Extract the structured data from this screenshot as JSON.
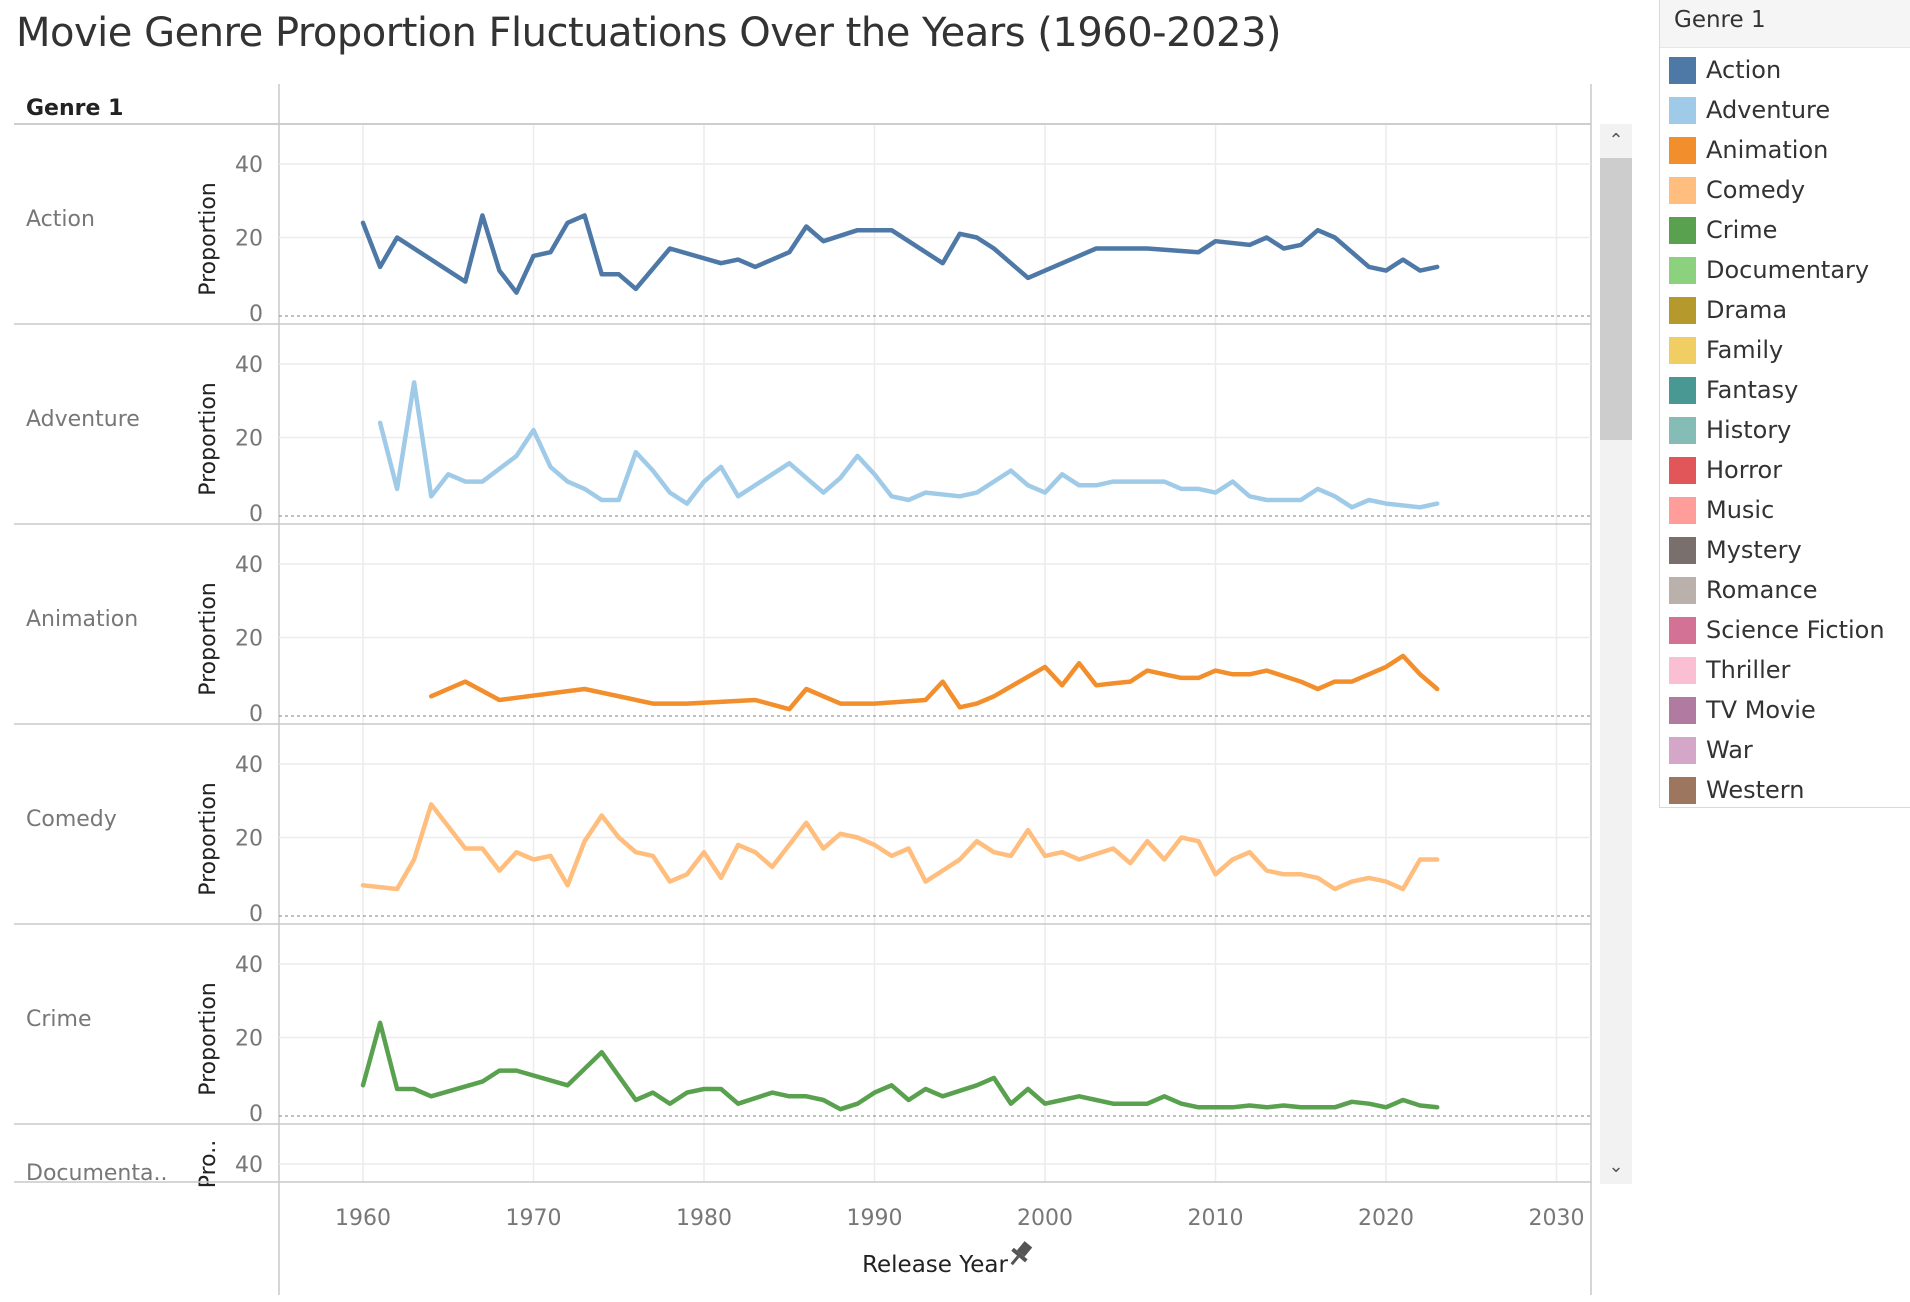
{
  "title": "Movie Genre Proportion Fluctuations Over the Years (1960-2023)",
  "row_header": "Genre 1",
  "x_axis_title": "Release Year",
  "y_axis_title": "Proportion",
  "y_axis_title_truncated": "Pro..",
  "pin_icon": "pin-icon",
  "legend": {
    "title": "Genre 1",
    "items": [
      {
        "label": "Action",
        "color": "#4e79a7"
      },
      {
        "label": "Adventure",
        "color": "#a0cbe8"
      },
      {
        "label": "Animation",
        "color": "#f28e2b"
      },
      {
        "label": "Comedy",
        "color": "#ffbe7d"
      },
      {
        "label": "Crime",
        "color": "#59a14f"
      },
      {
        "label": "Documentary",
        "color": "#8cd17d"
      },
      {
        "label": "Drama",
        "color": "#b6992d"
      },
      {
        "label": "Family",
        "color": "#f1ce63"
      },
      {
        "label": "Fantasy",
        "color": "#499894"
      },
      {
        "label": "History",
        "color": "#86bcb6"
      },
      {
        "label": "Horror",
        "color": "#e15759"
      },
      {
        "label": "Music",
        "color": "#ff9d9a"
      },
      {
        "label": "Mystery",
        "color": "#79706e"
      },
      {
        "label": "Romance",
        "color": "#bab0ac"
      },
      {
        "label": "Science Fiction",
        "color": "#d37295"
      },
      {
        "label": "Thriller",
        "color": "#fabfd2"
      },
      {
        "label": "TV Movie",
        "color": "#b07aa1"
      },
      {
        "label": "War",
        "color": "#d4a6c8"
      },
      {
        "label": "Western",
        "color": "#9d7660"
      }
    ]
  },
  "chart_data": {
    "type": "line",
    "x_ticks": [
      1960,
      1970,
      1980,
      1990,
      2000,
      2010,
      2020,
      2030
    ],
    "xlim": [
      1960,
      2030
    ],
    "y_ticks": [
      0,
      20,
      40
    ],
    "ylim": [
      0,
      45
    ],
    "panels": [
      {
        "name": "Action",
        "color": "#4e79a7",
        "x": [
          1960,
          1961,
          1962,
          1966,
          1967,
          1968,
          1969,
          1970,
          1971,
          1972,
          1973,
          1974,
          1975,
          1976,
          1978,
          1981,
          1982,
          1983,
          1985,
          1986,
          1987,
          1989,
          1991,
          1994,
          1995,
          1996,
          1997,
          1999,
          2003,
          2006,
          2009,
          2010,
          2012,
          2013,
          2014,
          2015,
          2016,
          2017,
          2019,
          2020,
          2021,
          2022,
          2023
        ],
        "y": [
          24,
          12,
          20,
          8,
          26,
          11,
          5,
          15,
          16,
          24,
          26,
          10,
          10,
          6,
          17,
          13,
          14,
          12,
          16,
          23,
          19,
          22,
          22,
          13,
          21,
          20,
          17,
          9,
          17,
          17,
          16,
          19,
          18,
          20,
          17,
          18,
          22,
          20,
          12,
          11,
          14,
          11,
          12
        ]
      },
      {
        "name": "Adventure",
        "color": "#a0cbe8",
        "x": [
          1961,
          1962,
          1963,
          1964,
          1965,
          1966,
          1967,
          1969,
          1970,
          1971,
          1972,
          1973,
          1974,
          1975,
          1976,
          1977,
          1978,
          1979,
          1980,
          1981,
          1982,
          1984,
          1985,
          1986,
          1987,
          1988,
          1989,
          1990,
          1991,
          1992,
          1993,
          1995,
          1996,
          1998,
          1999,
          2000,
          2001,
          2002,
          2003,
          2004,
          2006,
          2007,
          2008,
          2009,
          2010,
          2011,
          2012,
          2013,
          2015,
          2016,
          2017,
          2018,
          2019,
          2020,
          2022,
          2023
        ],
        "y": [
          24,
          6,
          35,
          4,
          10,
          8,
          8,
          15,
          22,
          12,
          8,
          6,
          3,
          3,
          16,
          11,
          5,
          2,
          8,
          12,
          4,
          10,
          13,
          9,
          5,
          9,
          15,
          10,
          4,
          3,
          5,
          4,
          5,
          11,
          7,
          5,
          10,
          7,
          7,
          8,
          8,
          8,
          6,
          6,
          5,
          8,
          4,
          3,
          3,
          6,
          4,
          1,
          3,
          2,
          1,
          2
        ]
      },
      {
        "name": "Animation",
        "color": "#f28e2b",
        "x": [
          1964,
          1966,
          1968,
          1973,
          1977,
          1979,
          1983,
          1985,
          1986,
          1988,
          1990,
          1993,
          1994,
          1995,
          1996,
          1997,
          2000,
          2001,
          2002,
          2003,
          2004,
          2005,
          2006,
          2007,
          2008,
          2009,
          2010,
          2011,
          2012,
          2013,
          2015,
          2016,
          2017,
          2018,
          2020,
          2021,
          2022,
          2023
        ],
        "y": [
          4,
          8,
          3,
          6,
          2,
          2,
          3,
          0.5,
          6,
          2,
          2,
          3,
          8,
          1,
          2,
          4,
          12,
          7,
          13,
          7,
          7.5,
          8,
          11,
          10,
          9,
          9,
          11,
          10,
          10,
          11,
          8,
          6,
          8,
          8,
          12,
          15,
          10,
          6
        ]
      },
      {
        "name": "Comedy",
        "color": "#ffbe7d",
        "x": [
          1960,
          1962,
          1963,
          1964,
          1965,
          1966,
          1967,
          1968,
          1969,
          1970,
          1971,
          1972,
          1973,
          1974,
          1975,
          1976,
          1977,
          1978,
          1979,
          1980,
          1981,
          1982,
          1983,
          1984,
          1986,
          1987,
          1988,
          1989,
          1990,
          1991,
          1992,
          1993,
          1995,
          1996,
          1997,
          1998,
          1999,
          2000,
          2001,
          2002,
          2004,
          2005,
          2006,
          2007,
          2008,
          2009,
          2010,
          2011,
          2012,
          2013,
          2014,
          2015,
          2016,
          2017,
          2018,
          2019,
          2020,
          2021,
          2022,
          2023
        ],
        "y": [
          7,
          6,
          14,
          29,
          23,
          17,
          17,
          11,
          16,
          14,
          15,
          7,
          19,
          26,
          20,
          16,
          15,
          8,
          10,
          16,
          9,
          18,
          16,
          12,
          24,
          17,
          21,
          20,
          18,
          15,
          17,
          8,
          14,
          19,
          16,
          15,
          22,
          15,
          16,
          14,
          17,
          13,
          19,
          14,
          20,
          19,
          10,
          14,
          16,
          11,
          10,
          10,
          9,
          6,
          8,
          9,
          8,
          6,
          14,
          14
        ]
      },
      {
        "name": "Crime",
        "color": "#59a14f",
        "x": [
          1960,
          1961,
          1962,
          1963,
          1964,
          1967,
          1968,
          1969,
          1972,
          1974,
          1976,
          1977,
          1978,
          1979,
          1980,
          1981,
          1982,
          1984,
          1985,
          1986,
          1987,
          1988,
          1989,
          1990,
          1991,
          1992,
          1993,
          1994,
          1996,
          1997,
          1998,
          1999,
          2000,
          2001,
          2002,
          2003,
          2004,
          2006,
          2007,
          2008,
          2009,
          2010,
          2011,
          2012,
          2013,
          2014,
          2015,
          2016,
          2017,
          2018,
          2019,
          2020,
          2021,
          2022,
          2023
        ],
        "y": [
          7,
          24,
          6,
          6,
          4,
          8,
          11,
          11,
          7,
          16,
          3,
          5,
          2,
          5,
          6,
          6,
          2,
          5,
          4,
          4,
          3,
          0.5,
          2,
          5,
          7,
          3,
          6,
          4,
          7,
          9,
          2,
          6,
          2,
          3,
          4,
          3,
          2,
          2,
          4,
          2,
          1,
          1,
          1,
          1.5,
          1,
          1.5,
          1,
          1,
          1,
          2.5,
          2,
          1,
          3,
          1.5,
          1
        ]
      }
    ],
    "partial_panel": {
      "name": "Documentary",
      "label_shown": "Documenta..",
      "y_tick_visible": 40
    }
  }
}
